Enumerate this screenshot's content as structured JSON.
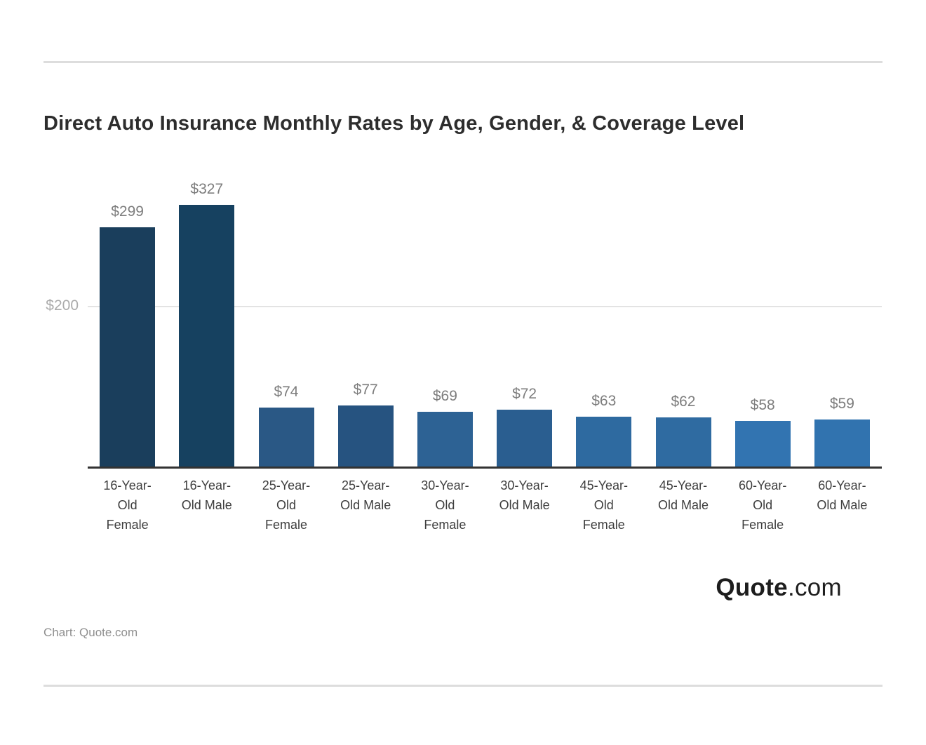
{
  "page": {
    "title": "Direct Auto Insurance Monthly Rates by Age, Gender, & Coverage Level",
    "credit": "Chart: Quote.com",
    "logo": {
      "bold": "Quote",
      "regular": ".com"
    }
  },
  "chart_data": {
    "type": "bar",
    "title": "Direct Auto Insurance Monthly Rates by Age, Gender, & Coverage Level",
    "categories": [
      "16-Year-Old Female",
      "16-Year-Old Male",
      "25-Year-Old Female",
      "25-Year-Old Male",
      "30-Year-Old Female",
      "30-Year-Old Male",
      "45-Year-Old Female",
      "45-Year-Old Male",
      "60-Year-Old Female",
      "60-Year-Old Male"
    ],
    "category_lines": [
      [
        "16-Year-",
        "Old",
        "Female"
      ],
      [
        "16-Year-",
        "Old Male"
      ],
      [
        "25-Year-",
        "Old",
        "Female"
      ],
      [
        "25-Year-",
        "Old Male"
      ],
      [
        "30-Year-",
        "Old",
        "Female"
      ],
      [
        "30-Year-",
        "Old Male"
      ],
      [
        "45-Year-",
        "Old",
        "Female"
      ],
      [
        "45-Year-",
        "Old Male"
      ],
      [
        "60-Year-",
        "Old",
        "Female"
      ],
      [
        "60-Year-",
        "Old Male"
      ]
    ],
    "values": [
      299,
      327,
      74,
      77,
      69,
      72,
      63,
      62,
      58,
      59
    ],
    "value_labels": [
      "$299",
      "$327",
      "$74",
      "$77",
      "$69",
      "$72",
      "$63",
      "$62",
      "$58",
      "$59"
    ],
    "bar_colors": [
      "#1a3e5c",
      "#164160",
      "#2a5885",
      "#265380",
      "#2d6294",
      "#2a5e90",
      "#2e6aa0",
      "#2f6ba1",
      "#3274b1",
      "#3173af"
    ],
    "xlabel": "",
    "ylabel": "",
    "ylim": [
      0,
      350
    ],
    "yticks": [
      {
        "value": 200,
        "label": "$200"
      }
    ],
    "grid": "horizontal",
    "legend": "none"
  },
  "style": {
    "grid_color": "#e3e3e3",
    "axis_color": "#333333",
    "divider_color": "#dddddd",
    "value_label_color": "#7d7d7d",
    "ytick_color": "#ababab",
    "category_label_color": "#3d3d3d",
    "title_color": "#2d2d2d"
  }
}
